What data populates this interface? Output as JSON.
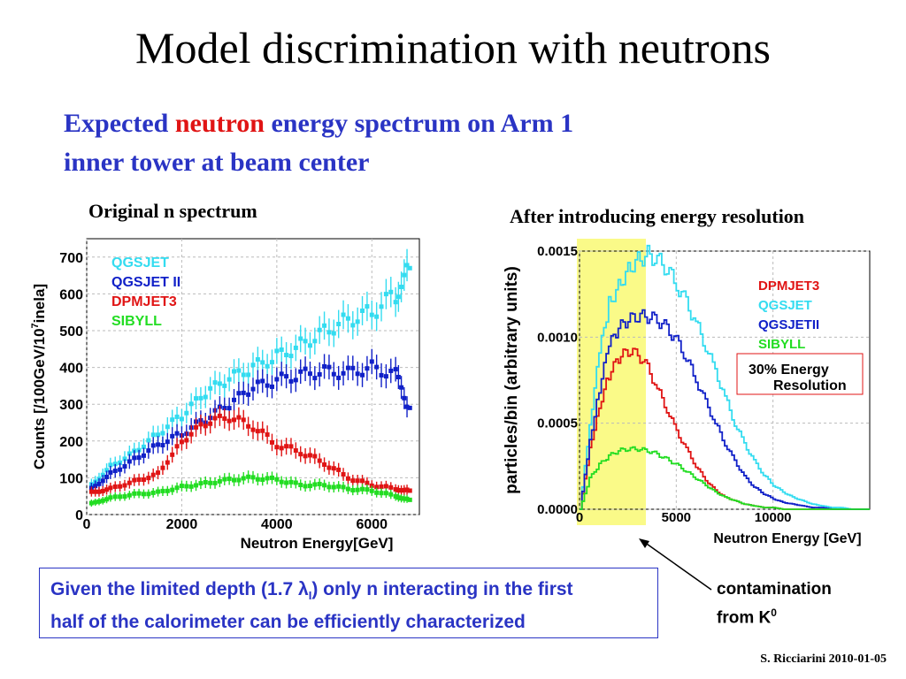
{
  "slide": {
    "title": "Model discrimination with neutrons",
    "subtitle_pre": "Expected ",
    "subtitle_hl": "neutron",
    "subtitle_post": " energy spectrum on Arm 1",
    "subtitle_line2": "inner tower at beam center",
    "left_caption": "Original  n spectrum",
    "right_caption": "After introducing energy resolution",
    "note_line1": "Given the limited depth (1.7 λ",
    "note_sub": "I",
    "note_line1_end": ") only n interacting in the first",
    "note_line2": "half of the calorimeter can be efficiently characterized",
    "annotation_line1": "contamination",
    "annotation_line2": "from K",
    "annotation_sup": "0",
    "credit": "S. Ricciarini 2010-01-05"
  },
  "colors": {
    "qgsjet": "#33dcf0",
    "qgsjet2": "#1020c8",
    "dpmjet3": "#e01414",
    "sibyll": "#22dd22",
    "highlight": "#fafa88",
    "note_blue": "#2a34c4"
  },
  "chart_data": [
    {
      "type": "scatter",
      "xlabel": "Neutron Energy[GeV]",
      "ylabel": "Counts [/100GeV/10^7inela]",
      "ylabel_parts": [
        "Counts [/100GeV/10",
        "7",
        "inela]"
      ],
      "xlim": [
        0,
        7000
      ],
      "ylim": [
        0,
        750
      ],
      "xticks": [
        0,
        2000,
        4000,
        6000
      ],
      "yticks": [
        0,
        100,
        200,
        300,
        400,
        500,
        600,
        700
      ],
      "legend_position": "top-left",
      "series": [
        {
          "name": "QGSJET",
          "color_key": "qgsjet",
          "x": [
            100,
            500,
            1000,
            1500,
            2000,
            2500,
            3000,
            3500,
            4000,
            4500,
            5000,
            5500,
            6000,
            6500,
            6800
          ],
          "y": [
            80,
            130,
            170,
            220,
            270,
            330,
            370,
            400,
            430,
            460,
            500,
            530,
            550,
            600,
            670
          ]
        },
        {
          "name": "QGSJET II",
          "color_key": "qgsjet2",
          "x": [
            100,
            500,
            1000,
            1500,
            2000,
            2500,
            3000,
            3500,
            4000,
            4500,
            5000,
            5500,
            6000,
            6500,
            6800
          ],
          "y": [
            70,
            110,
            150,
            190,
            220,
            260,
            300,
            345,
            365,
            380,
            390,
            385,
            400,
            380,
            290
          ]
        },
        {
          "name": "DPMJET3",
          "color_key": "dpmjet3",
          "x": [
            100,
            500,
            1000,
            1500,
            2000,
            2500,
            3000,
            3500,
            4000,
            4500,
            5000,
            5500,
            6000,
            6500,
            6800
          ],
          "y": [
            60,
            70,
            90,
            110,
            200,
            250,
            265,
            240,
            190,
            170,
            140,
            100,
            80,
            70,
            65
          ]
        },
        {
          "name": "SIBYLL",
          "color_key": "sibyll",
          "x": [
            100,
            500,
            1000,
            1500,
            2000,
            2500,
            3000,
            3500,
            4000,
            4500,
            5000,
            5500,
            6000,
            6500,
            6800
          ],
          "y": [
            30,
            45,
            55,
            60,
            75,
            85,
            95,
            100,
            95,
            80,
            80,
            70,
            65,
            50,
            40
          ]
        }
      ]
    },
    {
      "type": "line",
      "xlabel": "Neutron Energy [GeV]",
      "ylabel": "particles/bin (arbitrary units)",
      "xlim": [
        0,
        15000
      ],
      "ylim": [
        0,
        0.0015
      ],
      "xticks": [
        0,
        5000,
        10000
      ],
      "yticks": [
        0.0,
        0.0005,
        0.001,
        0.0015
      ],
      "ytick_labels": [
        "0.0000",
        "0.0005",
        "0.0010",
        "0.0015"
      ],
      "legend_position": "top-right",
      "annotation": [
        "30% Energy",
        "Resolution"
      ],
      "highlight_band_x": [
        0,
        3000
      ],
      "x": [
        0,
        500,
        1000,
        1500,
        2000,
        2500,
        3000,
        3500,
        4000,
        4500,
        5000,
        5500,
        6000,
        6500,
        7000,
        7500,
        8000,
        8500,
        9000,
        9500,
        10000,
        10500,
        11000,
        11500,
        12000,
        12500,
        13000,
        13500,
        14000,
        14500,
        15000
      ],
      "series": [
        {
          "name": "DPMJET3",
          "color_key": "dpmjet3",
          "y": [
            0,
            0.00035,
            0.0006,
            0.00078,
            0.00088,
            0.00092,
            0.0009,
            0.00082,
            0.0007,
            0.00058,
            0.00045,
            0.00035,
            0.00025,
            0.00017,
            0.00011,
            7e-05,
            5e-05,
            3e-05,
            2e-05,
            1e-05,
            1e-05,
            0,
            0,
            0,
            0,
            0,
            0,
            0,
            0,
            0,
            0
          ]
        },
        {
          "name": "QGSJET",
          "color_key": "qgsjet",
          "y": [
            0,
            0.0005,
            0.0009,
            0.0012,
            0.0013,
            0.0014,
            0.00145,
            0.00148,
            0.00145,
            0.0014,
            0.0013,
            0.0012,
            0.00108,
            0.00095,
            0.0008,
            0.00065,
            0.0005,
            0.00038,
            0.00028,
            0.0002,
            0.00014,
            0.0001,
            7e-05,
            5e-05,
            3e-05,
            2e-05,
            1e-05,
            1e-05,
            0,
            0,
            0
          ]
        },
        {
          "name": "QGSJETII",
          "color_key": "qgsjet2",
          "y": [
            0,
            0.0004,
            0.0007,
            0.00095,
            0.00105,
            0.0011,
            0.00112,
            0.00112,
            0.0011,
            0.00105,
            0.00098,
            0.00088,
            0.00075,
            0.00062,
            0.0005,
            0.00038,
            0.00028,
            0.00019,
            0.00013,
            9e-05,
            6e-05,
            4e-05,
            3e-05,
            2e-05,
            1e-05,
            1e-05,
            0,
            0,
            0,
            0,
            0
          ]
        },
        {
          "name": "SIBYLL",
          "color_key": "sibyll",
          "y": [
            0,
            0.00018,
            0.00026,
            0.00031,
            0.00034,
            0.00035,
            0.00035,
            0.00034,
            0.00032,
            0.00029,
            0.00026,
            0.00022,
            0.00018,
            0.00014,
            0.0001,
            7e-05,
            5e-05,
            3e-05,
            2e-05,
            1e-05,
            1e-05,
            0,
            0,
            0,
            0,
            0,
            0,
            0,
            0,
            0,
            0
          ]
        }
      ]
    }
  ]
}
